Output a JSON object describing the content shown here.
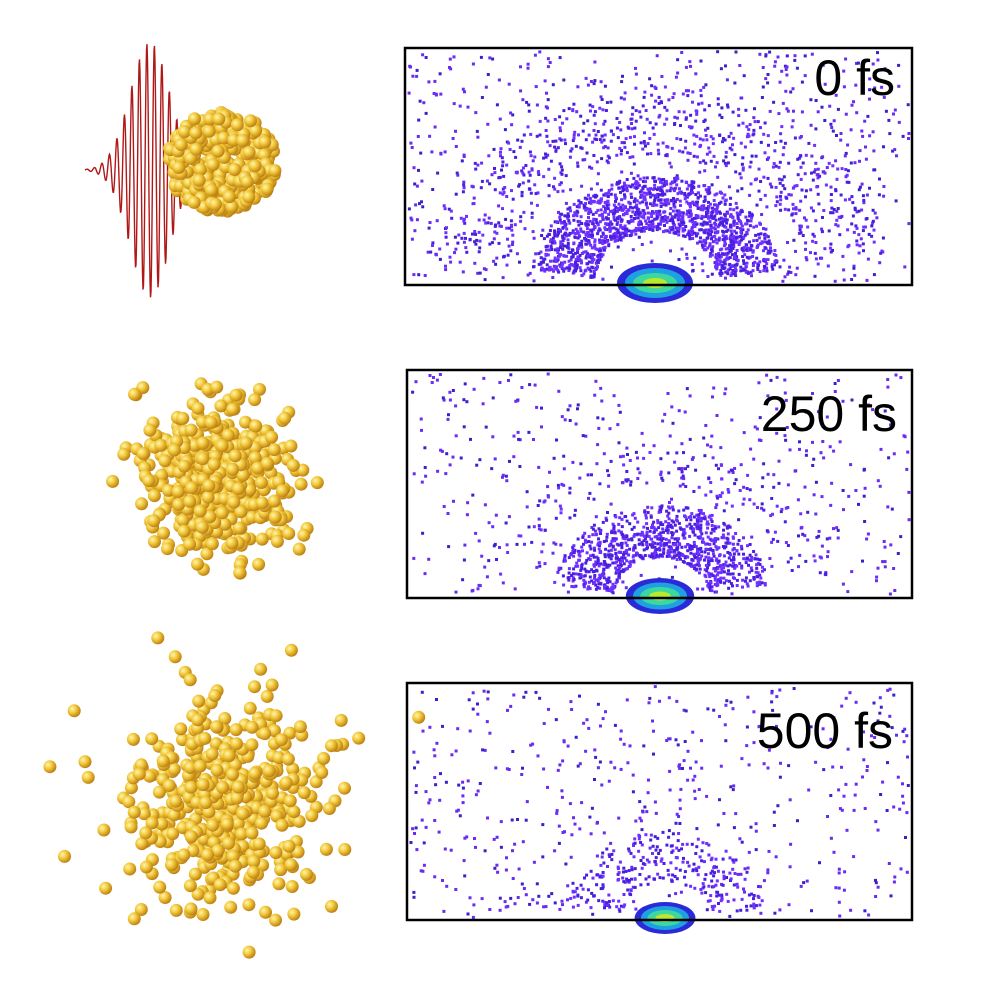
{
  "panels": [
    {
      "label": "0 fs"
    },
    {
      "label": "250 fs"
    },
    {
      "label": "500 fs"
    }
  ]
}
